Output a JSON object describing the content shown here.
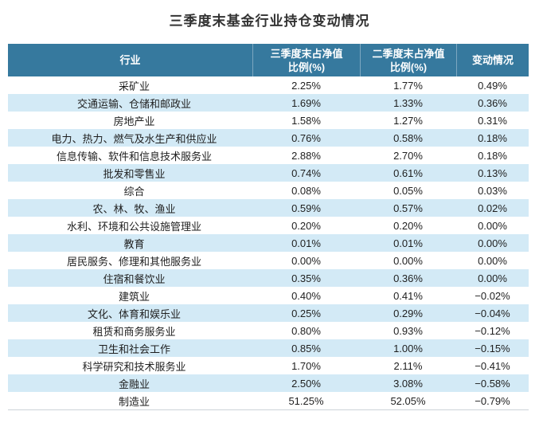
{
  "title": "三季度末基金行业持仓变动情况",
  "colors": {
    "header_bg": "#36799E",
    "header_text": "#FFFFFF",
    "row_alt_bg": "#D3EAF6",
    "row_bg": "#FFFFFF",
    "title_text": "#333333",
    "body_text": "#1F1F1F",
    "bottom_border": "#CDD3D8"
  },
  "chart_data": {
    "type": "table",
    "title": "三季度末基金行业持仓变动情况",
    "columns": [
      {
        "lines": [
          "行业"
        ]
      },
      {
        "lines": [
          "三季度末占净值",
          "比例(%)"
        ]
      },
      {
        "lines": [
          "二季度末占净值",
          "比例(%)"
        ]
      },
      {
        "lines": [
          "变动情况"
        ]
      }
    ],
    "rows": [
      [
        "采矿业",
        "2.25%",
        "1.77%",
        "0.49%"
      ],
      [
        "交通运输、仓储和邮政业",
        "1.69%",
        "1.33%",
        "0.36%"
      ],
      [
        "房地产业",
        "1.58%",
        "1.27%",
        "0.31%"
      ],
      [
        "电力、热力、燃气及水生产和供应业",
        "0.76%",
        "0.58%",
        "0.18%"
      ],
      [
        "信息传输、软件和信息技术服务业",
        "2.88%",
        "2.70%",
        "0.18%"
      ],
      [
        "批发和零售业",
        "0.74%",
        "0.61%",
        "0.13%"
      ],
      [
        "综合",
        "0.08%",
        "0.05%",
        "0.03%"
      ],
      [
        "农、林、牧、渔业",
        "0.59%",
        "0.57%",
        "0.02%"
      ],
      [
        "水利、环境和公共设施管理业",
        "0.20%",
        "0.20%",
        "0.00%"
      ],
      [
        "教育",
        "0.01%",
        "0.01%",
        "0.00%"
      ],
      [
        "居民服务、修理和其他服务业",
        "0.00%",
        "0.00%",
        "0.00%"
      ],
      [
        "住宿和餐饮业",
        "0.35%",
        "0.36%",
        "0.00%"
      ],
      [
        "建筑业",
        "0.40%",
        "0.41%",
        "−0.02%"
      ],
      [
        "文化、体育和娱乐业",
        "0.25%",
        "0.29%",
        "−0.04%"
      ],
      [
        "租赁和商务服务业",
        "0.80%",
        "0.93%",
        "−0.12%"
      ],
      [
        "卫生和社会工作",
        "0.85%",
        "1.00%",
        "−0.15%"
      ],
      [
        "科学研究和技术服务业",
        "1.70%",
        "2.11%",
        "−0.41%"
      ],
      [
        "金融业",
        "2.50%",
        "3.08%",
        "−0.58%"
      ],
      [
        "制造业",
        "51.25%",
        "52.05%",
        "−0.79%"
      ]
    ]
  }
}
